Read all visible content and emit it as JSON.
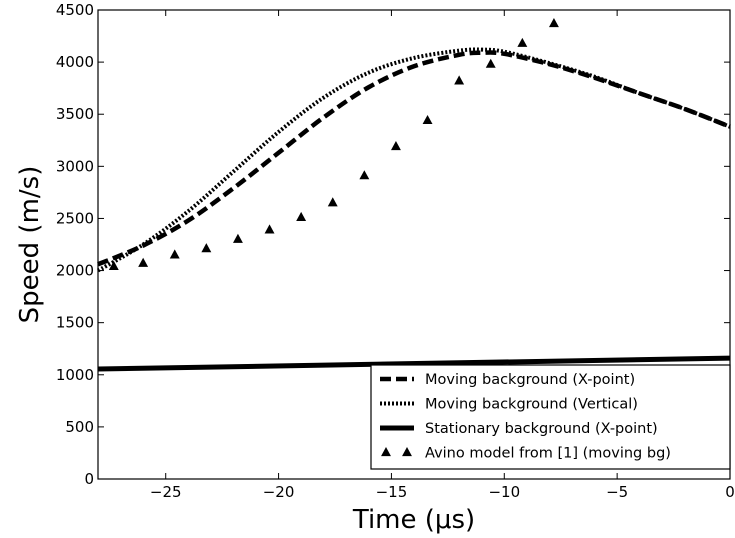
{
  "chart_data": {
    "type": "line",
    "title": "",
    "xlabel": "Time (μs)",
    "ylabel": "Speed (m/s)",
    "xlim": [
      -28,
      0
    ],
    "ylim": [
      0,
      4500
    ],
    "x_ticks": [
      -25,
      -20,
      -15,
      -10,
      -5,
      0
    ],
    "x_tick_labels": [
      "−25",
      "−20",
      "−15",
      "−10",
      "−5",
      "0"
    ],
    "y_ticks": [
      0,
      500,
      1000,
      1500,
      2000,
      2500,
      3000,
      3500,
      4000,
      4500
    ],
    "y_tick_labels": [
      "0",
      "500",
      "1000",
      "1500",
      "2000",
      "2500",
      "3000",
      "3500",
      "4000",
      "4500"
    ],
    "grid": false,
    "legend_position": "lower-right",
    "series": [
      {
        "name": "Moving background (X-point)",
        "style": "dashed",
        "color": "#000000",
        "x": [
          -28,
          -26,
          -24,
          -22,
          -20,
          -18,
          -16,
          -14,
          -12,
          -11,
          -10,
          -8,
          -6,
          -4,
          -2,
          0
        ],
        "y": [
          2060,
          2240,
          2480,
          2790,
          3130,
          3470,
          3760,
          3960,
          4070,
          4090,
          4080,
          3980,
          3850,
          3700,
          3550,
          3380
        ]
      },
      {
        "name": "Moving background (Vertical)",
        "style": "dotted",
        "color": "#000000",
        "x": [
          -28,
          -26,
          -24,
          -22,
          -20,
          -18,
          -16,
          -14,
          -12,
          -11,
          -10,
          -8,
          -6,
          -4,
          -2,
          0
        ],
        "y": [
          2000,
          2250,
          2570,
          2950,
          3330,
          3660,
          3900,
          4040,
          4110,
          4120,
          4100,
          3990,
          3860,
          3700,
          3550,
          3380
        ]
      },
      {
        "name": "Stationary background (X-point)",
        "style": "solid",
        "color": "#000000",
        "x": [
          -28,
          0
        ],
        "y": [
          1055,
          1160
        ]
      },
      {
        "name": "Avino model from [1] (moving bg)",
        "style": "triangle-markers",
        "color": "#000000",
        "x": [
          -27.3,
          -26.0,
          -24.6,
          -23.2,
          -21.8,
          -20.4,
          -19.0,
          -17.6,
          -16.2,
          -14.8,
          -13.4,
          -12.0,
          -10.6,
          -9.2,
          -7.8
        ],
        "y": [
          2040,
          2070,
          2150,
          2210,
          2300,
          2390,
          2510,
          2650,
          2910,
          3190,
          3440,
          3820,
          3980,
          4180,
          4370
        ]
      }
    ]
  }
}
